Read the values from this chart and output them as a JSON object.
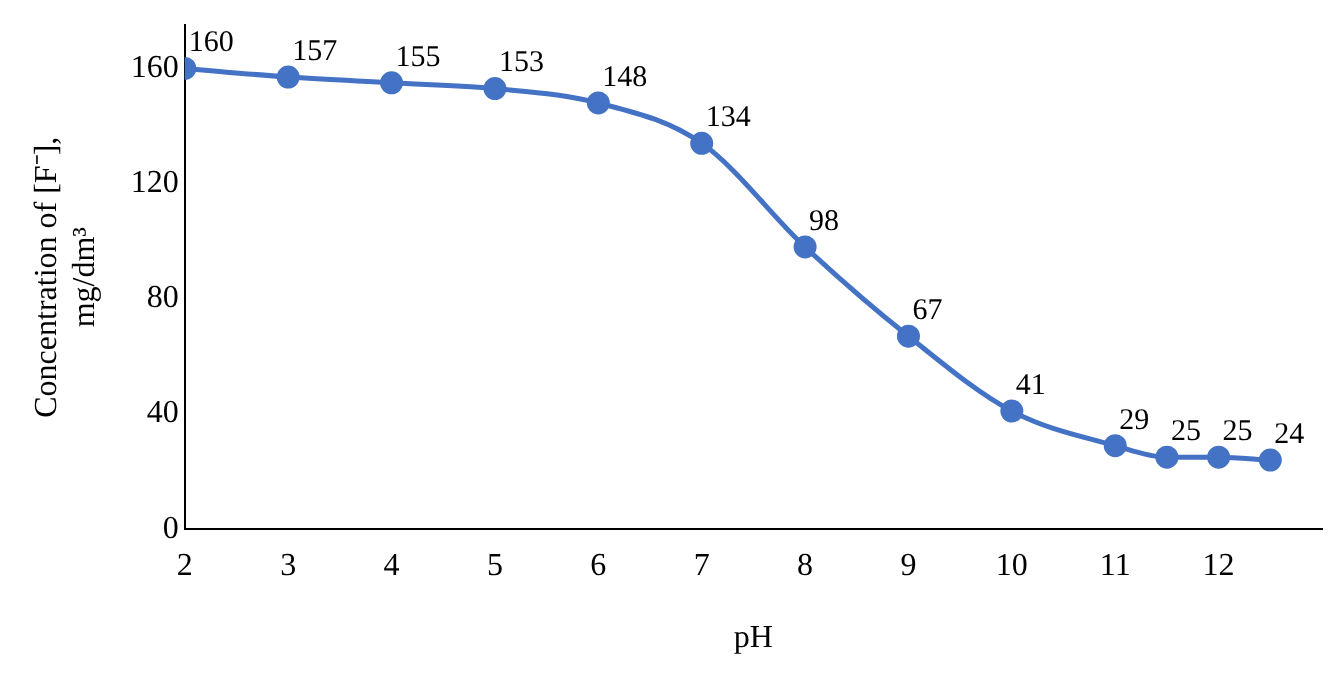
{
  "chart_data": {
    "type": "line",
    "xlabel": "pH",
    "ylabel": "Concentration of [F⁻], mg/dm³",
    "x": [
      2,
      3,
      4,
      5,
      6,
      7,
      8,
      9,
      10,
      11,
      11.5,
      12,
      12.5
    ],
    "values": [
      160,
      157,
      155,
      153,
      148,
      134,
      98,
      67,
      41,
      29,
      25,
      25,
      24
    ],
    "color": "#4472c4",
    "marker": "circle",
    "line_style": "solid",
    "data_labels": true,
    "xlim": [
      2,
      13
    ],
    "xticks": [
      2,
      3,
      4,
      5,
      6,
      7,
      8,
      9,
      10,
      11,
      12
    ],
    "ylim": [
      0,
      175
    ],
    "yticks": [
      0,
      40,
      80,
      120,
      160
    ],
    "grid": false,
    "legend": false
  }
}
